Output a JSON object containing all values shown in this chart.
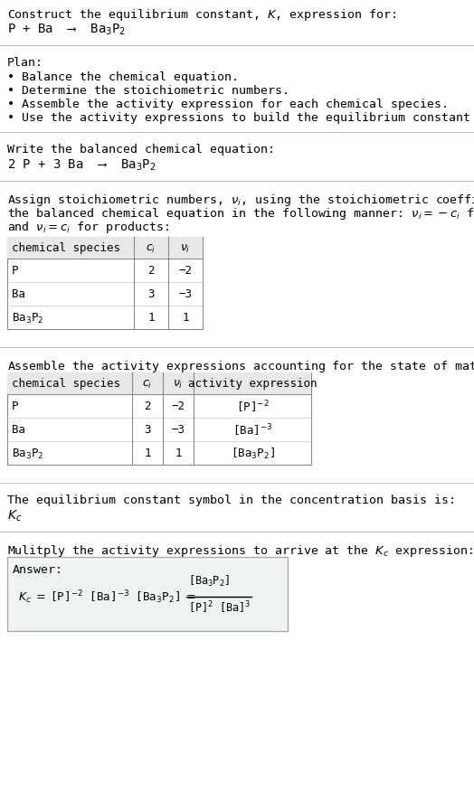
{
  "title_line1": "Construct the equilibrium constant, $K$, expression for:",
  "title_line2": "P + Ba  ⟶  Ba$_3$P$_2$",
  "plan_header": "Plan:",
  "plan_items": [
    "• Balance the chemical equation.",
    "• Determine the stoichiometric numbers.",
    "• Assemble the activity expression for each chemical species.",
    "• Use the activity expressions to build the equilibrium constant expression."
  ],
  "balanced_header": "Write the balanced chemical equation:",
  "balanced_eq": "2 P + 3 Ba  ⟶  Ba$_3$P$_2$",
  "stoich_intro_lines": [
    "Assign stoichiometric numbers, $\\nu_i$, using the stoichiometric coefficients, $c_i$, from",
    "the balanced chemical equation in the following manner: $\\nu_i = -c_i$ for reactants",
    "and $\\nu_i = c_i$ for products:"
  ],
  "table1_headers": [
    "chemical species",
    "$c_i$",
    "$\\nu_i$"
  ],
  "table1_rows": [
    [
      "P",
      "2",
      "−2"
    ],
    [
      "Ba",
      "3",
      "−3"
    ],
    [
      "Ba$_3$P$_2$",
      "1",
      "1"
    ]
  ],
  "activity_intro": "Assemble the activity expressions accounting for the state of matter and $\\nu_i$:",
  "table2_headers": [
    "chemical species",
    "$c_i$",
    "$\\nu_i$",
    "activity expression"
  ],
  "table2_rows": [
    [
      "P",
      "2",
      "−2",
      "[P]$^{-2}$"
    ],
    [
      "Ba",
      "3",
      "−3",
      "[Ba]$^{-3}$"
    ],
    [
      "Ba$_3$P$_2$",
      "1",
      "1",
      "[Ba$_3$P$_2$]"
    ]
  ],
  "Kc_intro": "The equilibrium constant symbol in the concentration basis is:",
  "Kc_symbol": "$K_c$",
  "multiply_intro": "Mulitply the activity expressions to arrive at the $K_c$ expression:",
  "answer_label": "Answer:",
  "bg_color": "#ffffff",
  "text_color": "#000000",
  "table_header_bg": "#e8e8e8",
  "separator_color": "#bbbbbb",
  "answer_box_bg": "#f0f4f0",
  "answer_box_border": "#aaaaaa",
  "font_size_body": 9.5,
  "font_size_eq": 10,
  "font_size_table": 9.0,
  "font_family": "DejaVu Sans Mono"
}
